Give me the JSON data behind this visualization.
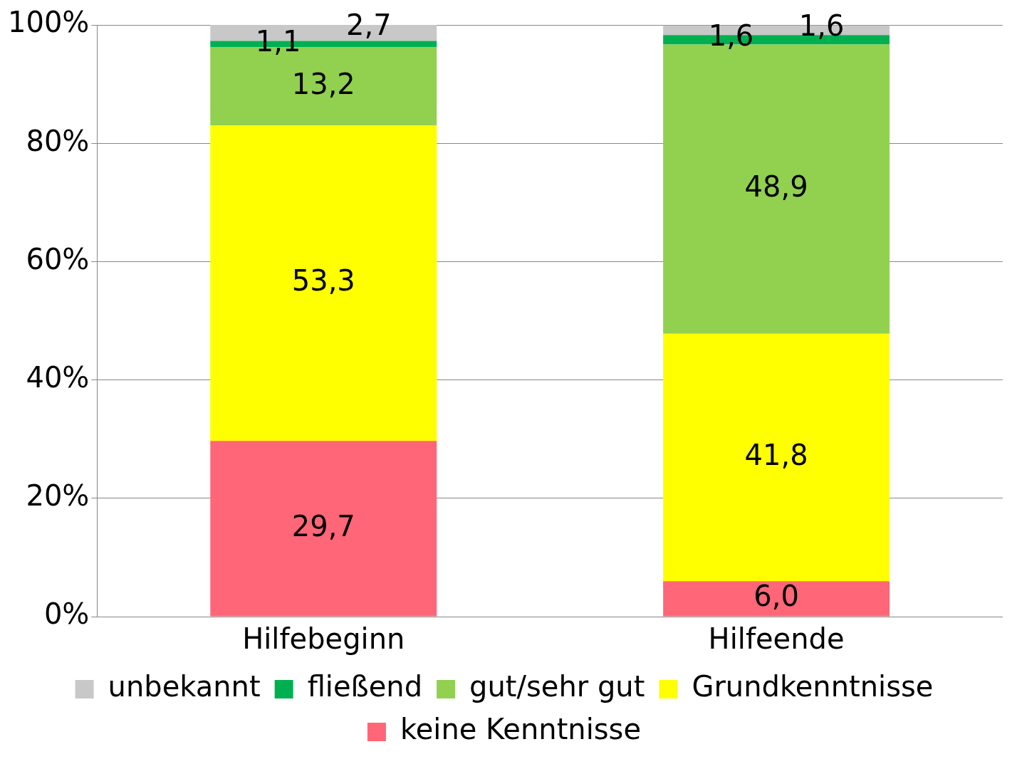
{
  "chart_data": {
    "type": "bar",
    "stacked": true,
    "categories": [
      "Hilfebeginn",
      "Hilfeende"
    ],
    "series": [
      {
        "name": "keine Kenntnisse",
        "color": "#ff6677",
        "values": [
          29.7,
          6.0
        ],
        "value_labels": [
          "29,7",
          "6,0"
        ]
      },
      {
        "name": "Grundkenntnisse",
        "color": "#ffff00",
        "values": [
          53.3,
          41.8
        ],
        "value_labels": [
          "53,3",
          "41,8"
        ]
      },
      {
        "name": "gut/sehr gut",
        "color": "#92d050",
        "values": [
          13.2,
          48.9
        ],
        "value_labels": [
          "13,2",
          "48,9"
        ]
      },
      {
        "name": "fließend",
        "color": "#00b050",
        "values": [
          1.1,
          1.6
        ],
        "value_labels": [
          "1,1",
          "1,6"
        ]
      },
      {
        "name": "unbekannt",
        "color": "#c8c8c8",
        "values": [
          2.7,
          1.6
        ],
        "value_labels": [
          "2,7",
          "1,6"
        ]
      }
    ],
    "ylim": [
      0,
      100
    ],
    "yticks": [
      {
        "value": 0,
        "label": "0%"
      },
      {
        "value": 20,
        "label": "20%"
      },
      {
        "value": 40,
        "label": "40%"
      },
      {
        "value": 60,
        "label": "60%"
      },
      {
        "value": 80,
        "label": "80%"
      },
      {
        "value": 100,
        "label": "100%"
      }
    ],
    "grid": "y",
    "legend": "bottom"
  }
}
